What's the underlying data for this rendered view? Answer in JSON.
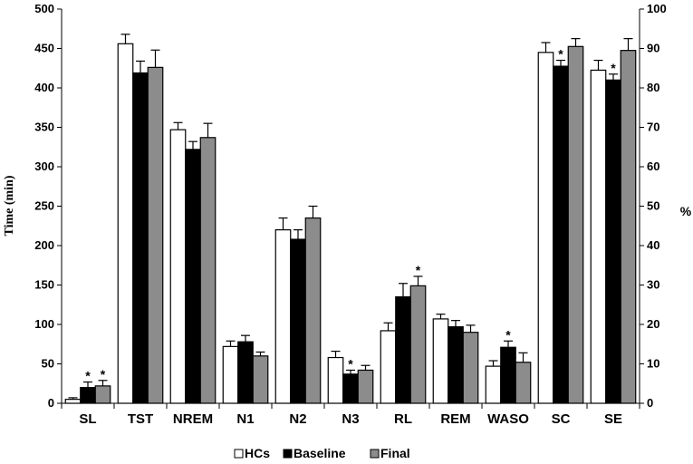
{
  "chart_data": {
    "type": "bar",
    "categories": [
      "SL",
      "TST",
      "NREM",
      "N1",
      "N2",
      "N3",
      "RL",
      "REM",
      "WASO",
      "SC",
      "SE"
    ],
    "series": [
      {
        "name": "HCs",
        "color": "#ffffff",
        "values": [
          5,
          456,
          347,
          72,
          220,
          58,
          92,
          107,
          47,
          89,
          84.5
        ],
        "errors": [
          2,
          12,
          9,
          7,
          15,
          8,
          10,
          6,
          7,
          2.5,
          2.5
        ]
      },
      {
        "name": "Baseline",
        "color": "#000000",
        "values": [
          20,
          419,
          322,
          78,
          208,
          37,
          135,
          97,
          71,
          85.5,
          82
        ],
        "errors": [
          7,
          15,
          10,
          8,
          12,
          5,
          17,
          8,
          8,
          1.5,
          1.5
        ]
      },
      {
        "name": "Final",
        "color": "#8c8c8c",
        "values": [
          22,
          426,
          337,
          60,
          235,
          42,
          149,
          90,
          52,
          90.5,
          89.5
        ],
        "errors": [
          7,
          22,
          18,
          5,
          15,
          6,
          12,
          9,
          12,
          2,
          3
        ]
      }
    ],
    "axis_by_category": [
      "left",
      "left",
      "left",
      "left",
      "left",
      "left",
      "left",
      "left",
      "left",
      "right",
      "right"
    ],
    "significance": [
      {
        "category": "SL",
        "series": "Baseline",
        "label": "*"
      },
      {
        "category": "SL",
        "series": "Final",
        "label": "*"
      },
      {
        "category": "N3",
        "series": "Baseline",
        "label": "*"
      },
      {
        "category": "RL",
        "series": "Final",
        "label": "*"
      },
      {
        "category": "WASO",
        "series": "Baseline",
        "label": "*"
      },
      {
        "category": "SC",
        "series": "Baseline",
        "label": "*"
      },
      {
        "category": "SE",
        "series": "Baseline",
        "label": "*"
      }
    ],
    "ylabel": "Time (min)",
    "ylabel_right": "%",
    "ylim": [
      0,
      500
    ],
    "ylim_right": [
      0,
      100
    ],
    "yticks": [
      0,
      50,
      100,
      150,
      200,
      250,
      300,
      350,
      400,
      450,
      500
    ],
    "yticks_right": [
      0,
      10,
      20,
      30,
      40,
      50,
      60,
      70,
      80,
      90,
      100
    ],
    "legend": [
      "HCs",
      "Baseline",
      "Final"
    ],
    "legend_position": "bottom-center",
    "grid": false
  }
}
